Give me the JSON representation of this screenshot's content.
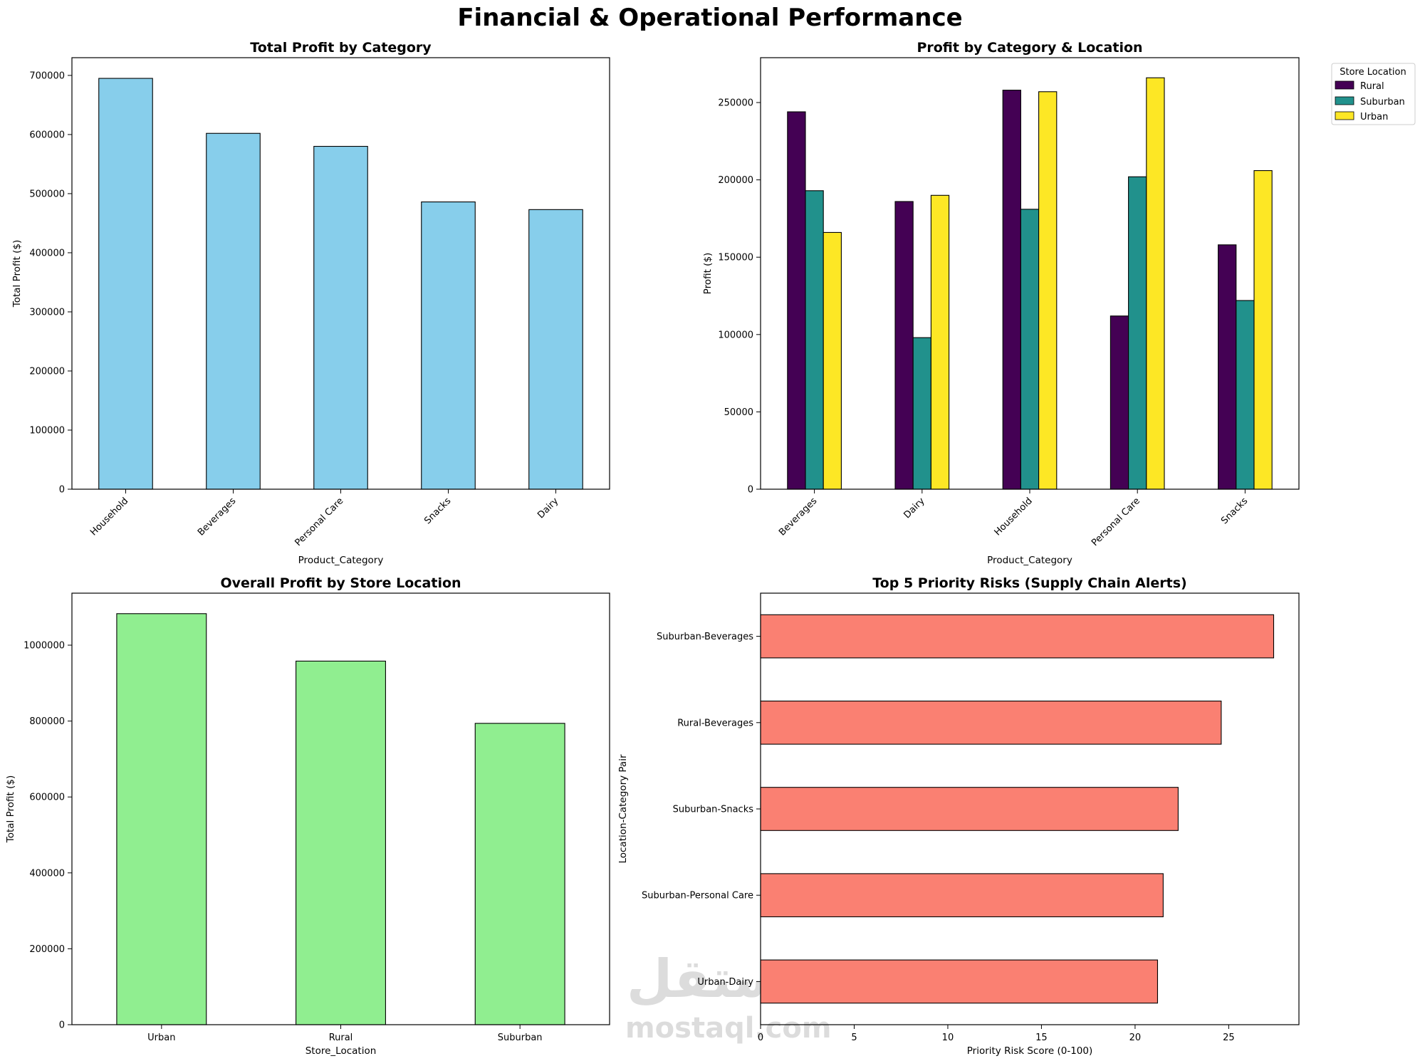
{
  "figure_title": "Financial & Operational Performance",
  "colors": {
    "category_bars": "#87ceeb",
    "location_bars": "#90ee90",
    "risk_bars": "#fa8072",
    "rural": "#440154",
    "suburban": "#21918c",
    "urban": "#fde725",
    "edge": "#000000"
  },
  "watermark": {
    "arabic": "مستقل",
    "latin": "mostaql.com"
  },
  "chart_data": [
    {
      "id": "profit_by_category",
      "type": "bar",
      "title": "Total Profit by Category",
      "xlabel": "Product_Category",
      "ylabel": "Total Profit ($)",
      "categories": [
        "Household",
        "Beverages",
        "Personal Care",
        "Snacks",
        "Dairy"
      ],
      "values": [
        695000,
        602000,
        580000,
        486000,
        473000
      ],
      "ylim": [
        0,
        730000
      ],
      "yticks": [
        0,
        100000,
        200000,
        300000,
        400000,
        500000,
        600000,
        700000
      ]
    },
    {
      "id": "profit_by_category_location",
      "type": "bar",
      "title": "Profit by Category & Location",
      "xlabel": "Product_Category",
      "ylabel": "Profit ($)",
      "categories": [
        "Beverages",
        "Dairy",
        "Household",
        "Personal Care",
        "Snacks"
      ],
      "series": [
        {
          "name": "Rural",
          "values": [
            244000,
            186000,
            258000,
            112000,
            158000
          ]
        },
        {
          "name": "Suburban",
          "values": [
            193000,
            98000,
            181000,
            202000,
            122000
          ]
        },
        {
          "name": "Urban",
          "values": [
            166000,
            190000,
            257000,
            266000,
            206000
          ]
        }
      ],
      "legend_title": "Store Location",
      "legend_position": "outside upper right",
      "ylim": [
        0,
        279000
      ],
      "yticks": [
        0,
        50000,
        100000,
        150000,
        200000,
        250000
      ]
    },
    {
      "id": "profit_by_location",
      "type": "bar",
      "title": "Overall Profit by Store Location",
      "xlabel": "Store_Location",
      "ylabel": "Total Profit ($)",
      "categories": [
        "Urban",
        "Rural",
        "Suburban"
      ],
      "values": [
        1083000,
        958000,
        794000
      ],
      "ylim": [
        0,
        1137000
      ],
      "yticks": [
        0,
        200000,
        400000,
        600000,
        800000,
        1000000
      ]
    },
    {
      "id": "top_risks",
      "type": "bar",
      "orientation": "horizontal",
      "title": "Top 5 Priority Risks (Supply Chain Alerts)",
      "xlabel": "Priority Risk Score (0-100)",
      "ylabel": "Location-Category Pair",
      "categories": [
        "Suburban-Beverages",
        "Rural-Beverages",
        "Suburban-Snacks",
        "Suburban-Personal Care",
        "Urban-Dairy"
      ],
      "values": [
        27.4,
        24.6,
        22.3,
        21.5,
        21.2
      ],
      "xlim": [
        0,
        28.75
      ],
      "xticks": [
        0,
        5,
        10,
        15,
        20,
        25
      ]
    }
  ]
}
